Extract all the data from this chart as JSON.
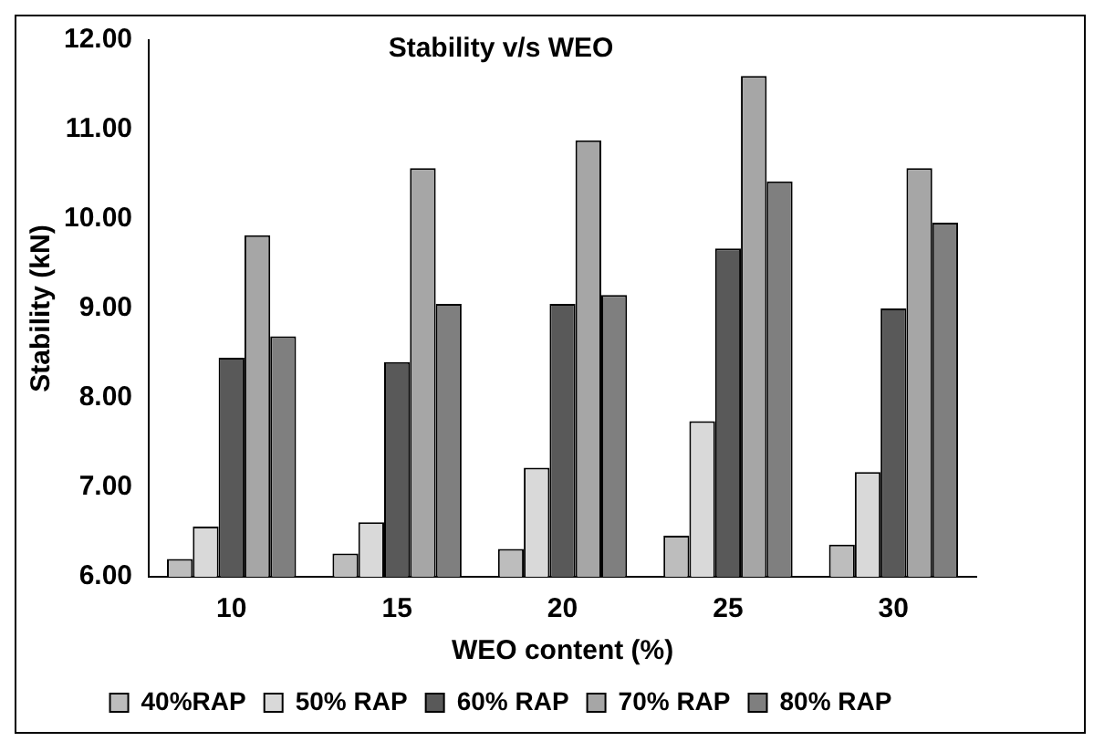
{
  "chart_data": {
    "type": "bar",
    "title": "Stability v/s WEO",
    "xlabel": "WEO content (%)",
    "ylabel": "Stability (kN)",
    "categories": [
      "10",
      "15",
      "20",
      "25",
      "30"
    ],
    "series": [
      {
        "name": "40%RAP",
        "color": "#bdbdbd",
        "values": [
          6.2,
          6.26,
          6.31,
          6.46,
          6.36
        ]
      },
      {
        "name": "50% RAP",
        "color": "#d9d9d9",
        "values": [
          6.56,
          6.61,
          7.22,
          7.74,
          7.17
        ]
      },
      {
        "name": "60% RAP",
        "color": "#595959",
        "values": [
          8.45,
          8.4,
          9.05,
          9.67,
          9.0
        ]
      },
      {
        "name": "70% RAP",
        "color": "#a6a6a6",
        "values": [
          9.82,
          10.57,
          10.88,
          11.6,
          10.57
        ]
      },
      {
        "name": "80% RAP",
        "color": "#7f7f7f",
        "values": [
          8.69,
          9.05,
          9.15,
          10.42,
          9.96
        ]
      }
    ],
    "ylim": [
      6,
      12
    ],
    "yticks": [
      {
        "value": 6,
        "label": "6.00"
      },
      {
        "value": 7,
        "label": "7.00"
      },
      {
        "value": 8,
        "label": "8.00"
      },
      {
        "value": 9,
        "label": "9.00"
      },
      {
        "value": 10,
        "label": "10.00"
      },
      {
        "value": 11,
        "label": "11.00"
      },
      {
        "value": 12,
        "label": "12.00"
      }
    ],
    "grid": false,
    "legend": "bottom"
  }
}
